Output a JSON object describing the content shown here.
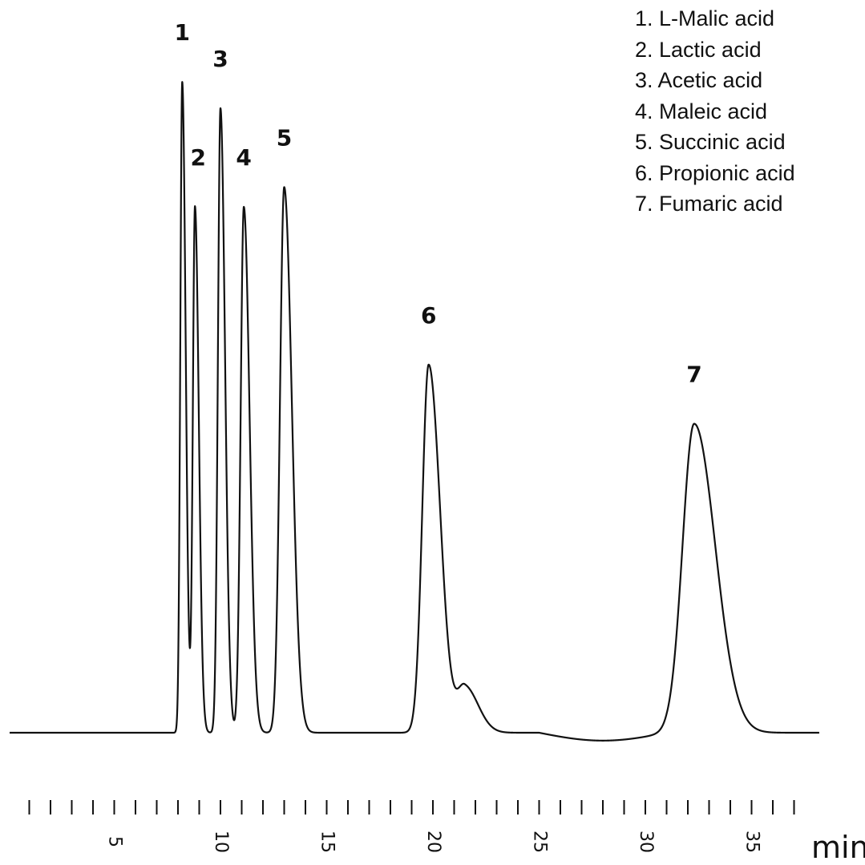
{
  "chart_data": {
    "type": "line",
    "title": "",
    "xlabel": "min",
    "ylabel": "",
    "xlim": [
      0,
      37
    ],
    "ylim": [
      0,
      1.0
    ],
    "grid": false,
    "legend_placement": "top-right",
    "x_ticks": [
      5,
      10,
      15,
      20,
      25,
      30,
      35
    ],
    "x_tick_labels": [
      "5",
      "10",
      "15",
      "20",
      "25",
      "30",
      "35"
    ],
    "legend": [
      "1. L-Malic acid",
      "2. Lactic acid",
      "3. Acetic acid",
      "4. Maleic acid",
      "5. Succinic acid",
      "6. Propionic acid",
      "7. Fumaric acid"
    ],
    "peaks": [
      {
        "label": "1",
        "name": "L-Malic acid",
        "time": 8.2,
        "height": 0.99
      },
      {
        "label": "2",
        "name": "Lactic acid",
        "time": 8.8,
        "height": 0.8
      },
      {
        "label": "3",
        "name": "Acetic acid",
        "time": 10.0,
        "height": 0.95
      },
      {
        "label": "4",
        "name": "Maleic acid",
        "time": 11.1,
        "height": 0.8
      },
      {
        "label": "5",
        "name": "Succinic acid",
        "time": 13.0,
        "height": 0.83
      },
      {
        "label": "6",
        "name": "Propionic acid",
        "time": 19.8,
        "height": 0.56
      },
      {
        "label": "",
        "name": "",
        "time": 21.5,
        "height": 0.07
      },
      {
        "label": "7",
        "name": "Fumaric acid",
        "time": 32.3,
        "height": 0.47
      }
    ],
    "baseline": 0.0
  }
}
